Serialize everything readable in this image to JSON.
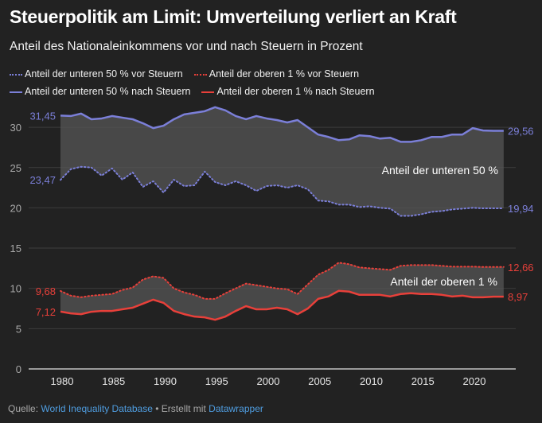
{
  "title": "Steuerpolitik am Limit: Umverteilung verliert an Kraft",
  "subtitle": "Anteil des Nationaleinkommens vor und nach Steuern in Prozent",
  "footer": {
    "source_label": "Quelle:",
    "source_link": "World Inequality Database",
    "separator": "•",
    "made_with": "Erstellt mit",
    "tool_link": "Datawrapper"
  },
  "colors": {
    "background": "#222222",
    "bottom50": "#7b7fd8",
    "top1": "#e8403a",
    "band": "#555555",
    "link": "#4f9de0"
  },
  "chart_data": {
    "type": "line",
    "title": "Steuerpolitik am Limit: Umverteilung verliert an Kraft",
    "subtitle": "Anteil des Nationaleinkommens vor und nach Steuern in Prozent",
    "ylim": [
      0,
      33
    ],
    "yticks": [
      "0",
      "5",
      "10",
      "15",
      "20",
      "25",
      "30"
    ],
    "xticks": [
      "1980",
      "1985",
      "1990",
      "1995",
      "2000",
      "2005",
      "2010",
      "2015",
      "2020"
    ],
    "grid": true,
    "legend_placement": "top",
    "x": [
      1980,
      1981,
      1982,
      1983,
      1984,
      1985,
      1986,
      1987,
      1988,
      1989,
      1990,
      1991,
      1992,
      1993,
      1994,
      1995,
      1996,
      1997,
      1998,
      1999,
      2000,
      2001,
      2002,
      2003,
      2004,
      2005,
      2006,
      2007,
      2008,
      2009,
      2010,
      2011,
      2012,
      2013,
      2014,
      2015,
      2016,
      2017,
      2018,
      2019,
      2020,
      2021,
      2022,
      2023
    ],
    "series": [
      {
        "name": "Anteil der unteren 50 % vor Steuern",
        "style": "dotted",
        "color": "#7b7fd8",
        "start_label": "23,47",
        "end_label": "19,94",
        "values": [
          23.47,
          24.8,
          25.1,
          25.0,
          24.0,
          24.9,
          23.5,
          24.4,
          22.6,
          23.3,
          21.9,
          23.5,
          22.7,
          22.8,
          24.5,
          23.2,
          22.8,
          23.3,
          22.8,
          22.1,
          22.7,
          22.8,
          22.5,
          22.8,
          22.3,
          20.9,
          20.8,
          20.4,
          20.4,
          20.1,
          20.2,
          20.0,
          19.9,
          19.0,
          19.0,
          19.2,
          19.5,
          19.6,
          19.8,
          19.9,
          20.0,
          19.94,
          19.94,
          19.94
        ]
      },
      {
        "name": "Anteil der oberen 1 % vor Steuern",
        "style": "dotted",
        "color": "#e8403a",
        "start_label": "9,68",
        "end_label": "12,66",
        "values": [
          9.68,
          9.1,
          8.9,
          9.1,
          9.2,
          9.3,
          9.8,
          10.1,
          11.1,
          11.5,
          11.3,
          10.0,
          9.5,
          9.2,
          8.7,
          8.7,
          9.4,
          10.0,
          10.6,
          10.4,
          10.2,
          10.0,
          9.9,
          9.3,
          10.5,
          11.7,
          12.3,
          13.2,
          13.0,
          12.6,
          12.5,
          12.4,
          12.3,
          12.8,
          12.9,
          12.9,
          12.9,
          12.8,
          12.7,
          12.7,
          12.7,
          12.66,
          12.66,
          12.66
        ]
      },
      {
        "name": "Anteil der unteren 50 % nach Steuern",
        "style": "solid",
        "color": "#7b7fd8",
        "start_label": "31,45",
        "end_label": "29,56",
        "values": [
          31.45,
          31.4,
          31.7,
          31.0,
          31.1,
          31.4,
          31.2,
          31.0,
          30.5,
          29.9,
          30.2,
          31.0,
          31.6,
          31.8,
          32.0,
          32.5,
          32.1,
          31.4,
          31.0,
          31.4,
          31.1,
          30.9,
          30.6,
          30.9,
          30.0,
          29.1,
          28.8,
          28.4,
          28.5,
          29.0,
          28.9,
          28.6,
          28.7,
          28.2,
          28.2,
          28.4,
          28.8,
          28.8,
          29.1,
          29.1,
          29.9,
          29.6,
          29.56,
          29.56
        ]
      },
      {
        "name": "Anteil der oberen 1 % nach Steuern",
        "style": "solid",
        "color": "#e8403a",
        "start_label": "7,12",
        "end_label": "8,97",
        "values": [
          7.12,
          6.9,
          6.8,
          7.1,
          7.2,
          7.2,
          7.4,
          7.6,
          8.1,
          8.6,
          8.2,
          7.2,
          6.8,
          6.5,
          6.4,
          6.1,
          6.5,
          7.2,
          7.8,
          7.4,
          7.4,
          7.6,
          7.4,
          6.8,
          7.5,
          8.7,
          9.0,
          9.7,
          9.6,
          9.2,
          9.2,
          9.2,
          9.0,
          9.3,
          9.4,
          9.3,
          9.3,
          9.2,
          9.0,
          9.1,
          8.9,
          8.9,
          8.97,
          8.97
        ]
      }
    ],
    "annotations": [
      "Anteil der unteren 50 %",
      "Anteil der oberen 1 %"
    ]
  }
}
